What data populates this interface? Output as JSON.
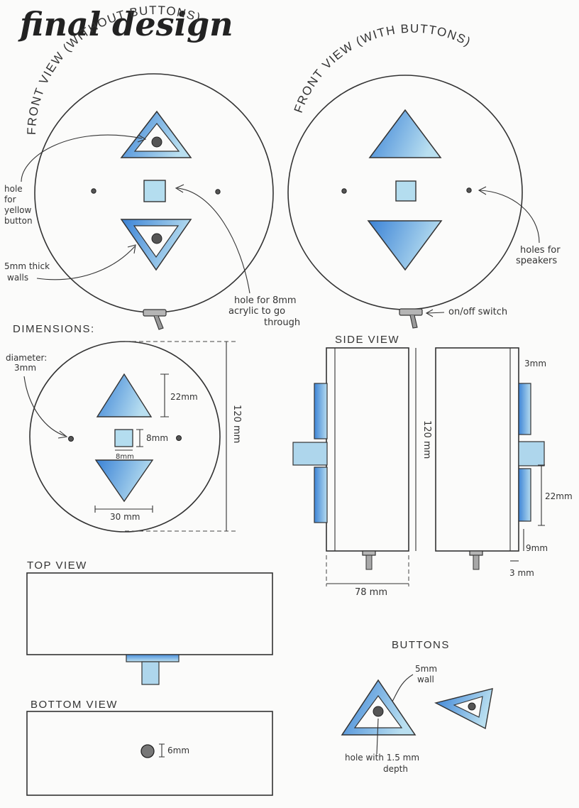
{
  "title": "final design",
  "views": {
    "front_without": "FRONT VIEW (WITHOUT BUTTONS)",
    "front_with": "FRONT VIEW (WITH BUTTONS)",
    "dimensions": "DIMENSIONS:",
    "side": "SIDE VIEW",
    "top": "TOP VIEW",
    "bottom": "BOTTOM VIEW",
    "buttons": "BUTTONS"
  },
  "annotations": {
    "hole_yellow": [
      "hole",
      "for",
      "yellow",
      "button"
    ],
    "walls": [
      "5mm thick",
      "walls"
    ],
    "acrylic": [
      "hole for 8mm",
      "acrylic to go",
      "through"
    ],
    "speakers": [
      "holes for",
      "speakers"
    ],
    "switch": "on/off switch",
    "diameter": [
      "diameter:",
      "3mm"
    ],
    "button_wall": [
      "5mm",
      "wall"
    ],
    "button_hole": [
      "hole with 1.5 mm",
      "depth"
    ]
  },
  "dimensions": {
    "tri_height": "22mm",
    "square": "8mm",
    "square_width": "8mm",
    "width": "30 mm",
    "height": "120 mm",
    "side_height": "120 mm",
    "side_top": "3mm",
    "side_button": "22mm",
    "side_bottom": "9mm",
    "side_base": "3 mm",
    "side_width": "78 mm",
    "bottom_hole": "6mm"
  },
  "colors": {
    "blue": "#3d85d8",
    "blue_light": "#aed6ec",
    "ink": "#333333"
  }
}
